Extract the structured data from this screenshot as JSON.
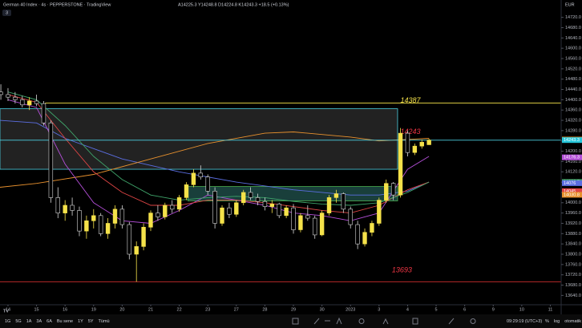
{
  "header": {
    "title": "German 40 Index · 4s · PEPPERSTONE · TradingView",
    "ohlc": "A14225.3 Y14248.8 D14224.8 K14243.3 +18.5 (+0.13%)",
    "badge": "3",
    "currency": "EUR"
  },
  "toolbar": {
    "ranges": [
      "1G",
      "5G",
      "1A",
      "3A",
      "6A",
      "Bu sene",
      "1Y",
      "5Y",
      "Tümü"
    ],
    "clock": "09:29:19 (UTC+3)",
    "options": [
      "%",
      "log",
      "otomatik"
    ]
  },
  "chart_data": {
    "type": "candlestick",
    "x": [
      -0.25,
      0,
      0.25,
      0.5,
      0.75,
      1,
      1.25,
      1.5,
      1.75,
      2,
      2.25,
      2.5,
      2.75,
      3,
      3.25,
      3.5,
      3.75,
      4,
      4.25,
      4.5,
      4.75,
      5,
      5.25,
      5.5,
      5.75,
      6,
      6.25,
      6.5,
      6.75,
      7,
      7.25,
      7.5,
      7.75,
      8,
      8.25,
      8.5,
      8.75,
      9,
      9.25,
      9.5,
      9.75,
      10,
      10.25,
      10.5,
      10.75,
      11,
      11.25,
      11.5,
      11.75,
      12,
      12.25,
      12.5,
      12.75,
      13,
      13.25,
      13.5,
      13.75,
      14,
      14.25,
      14.5,
      14.75
    ],
    "open": [
      14430,
      14420,
      14410,
      14400,
      14380,
      14395,
      14385,
      14310,
      14020,
      13960,
      13990,
      13970,
      13890,
      13930,
      13950,
      13880,
      13920,
      13975,
      13915,
      13800,
      13830,
      13905,
      13960,
      13945,
      13990,
      13975,
      14020,
      14070,
      14115,
      14100,
      14045,
      13920,
      13980,
      13955,
      14000,
      14040,
      14020,
      14005,
      13985,
      13995,
      13950,
      13980,
      13895,
      13950,
      13940,
      13875,
      13960,
      14020,
      14035,
      13975,
      13915,
      13840,
      13885,
      13920,
      14010,
      14075,
      14030,
      14270,
      14195,
      14220,
      14225.3
    ],
    "high": [
      14460,
      14445,
      14430,
      14415,
      14410,
      14420,
      14395,
      14320,
      14060,
      14010,
      14020,
      13985,
      13950,
      13975,
      13960,
      13940,
      13990,
      13990,
      13925,
      13850,
      13920,
      13970,
      13990,
      14000,
      14010,
      14030,
      14080,
      14130,
      14145,
      14110,
      14060,
      13990,
      14000,
      14010,
      14050,
      14060,
      14035,
      14020,
      14010,
      14000,
      13990,
      13995,
      13960,
      13990,
      13950,
      13970,
      14030,
      14050,
      14040,
      13985,
      13930,
      13900,
      13930,
      14020,
      14090,
      14080,
      14290,
      14280,
      14230,
      14245,
      14248.8
    ],
    "low": [
      14400,
      14395,
      14385,
      14370,
      14360,
      14375,
      14300,
      14000,
      13940,
      13930,
      13950,
      13870,
      13860,
      13900,
      13870,
      13860,
      13900,
      13900,
      13780,
      13693,
      13815,
      13890,
      13930,
      13935,
      13960,
      13965,
      14010,
      14060,
      14090,
      14030,
      13900,
      13910,
      13940,
      13945,
      13990,
      14010,
      13990,
      13970,
      13960,
      13940,
      13940,
      13880,
      13885,
      13930,
      13860,
      13870,
      13950,
      14000,
      13960,
      13900,
      13820,
      13830,
      13870,
      13910,
      14000,
      14010,
      14020,
      14180,
      14185,
      14210,
      14224.8
    ],
    "close": [
      14420,
      14410,
      14400,
      14380,
      14395,
      14385,
      14310,
      14020,
      13960,
      13990,
      13970,
      13890,
      13930,
      13950,
      13880,
      13920,
      13975,
      13915,
      13800,
      13830,
      13905,
      13960,
      13945,
      13990,
      13975,
      14020,
      14070,
      14115,
      14100,
      14045,
      13920,
      13980,
      13955,
      14000,
      14040,
      14020,
      14005,
      13985,
      13995,
      13950,
      13980,
      13895,
      13950,
      13940,
      13875,
      13960,
      14020,
      14035,
      13975,
      13915,
      13840,
      13885,
      13920,
      14010,
      14075,
      14030,
      14270,
      14195,
      14220,
      14235,
      14243.3
    ],
    "up_color": "#f5e24a",
    "down_color": "#000000",
    "down_border": "#d9d9d9",
    "overlays": [
      {
        "color": "#5b6ee1",
        "x": [
          -0.28,
          1,
          2,
          4,
          6,
          8,
          10,
          12,
          13,
          14,
          14.75
        ],
        "values": [
          14320,
          14310,
          14250,
          14170,
          14120,
          14080,
          14050,
          14030,
          14030,
          14045,
          14080
        ]
      },
      {
        "color": "#e8912e",
        "x": [
          -0.28,
          1,
          3,
          5,
          7,
          9,
          10,
          12,
          13,
          14.75
        ],
        "values": [
          14060,
          14075,
          14110,
          14170,
          14230,
          14270,
          14275,
          14255,
          14240,
          14250
        ]
      },
      {
        "color": "#b44fd8",
        "x": [
          0,
          1,
          2,
          3,
          4,
          5,
          6,
          7,
          8,
          9,
          10,
          11,
          12,
          13,
          14,
          14.75
        ],
        "values": [
          14400,
          14370,
          14150,
          14000,
          13930,
          13920,
          13970,
          14030,
          14010,
          13990,
          13960,
          13950,
          13930,
          13960,
          14130,
          14180
        ]
      },
      {
        "color": "#e04545",
        "x": [
          0,
          1,
          2,
          3,
          4,
          5,
          6,
          7,
          8,
          9,
          10,
          11,
          12,
          13,
          14,
          14.75
        ],
        "values": [
          14420,
          14390,
          14250,
          14120,
          14040,
          13990,
          13990,
          14010,
          14010,
          14000,
          13985,
          13970,
          13960,
          13990,
          14050,
          14080
        ]
      },
      {
        "color": "#3fa46a",
        "x": [
          0,
          1,
          2,
          3,
          4,
          5,
          6,
          7,
          8,
          9,
          10,
          11,
          12,
          13,
          14,
          14.75
        ],
        "values": [
          14430,
          14400,
          14300,
          14180,
          14090,
          14030,
          14010,
          14020,
          14025,
          14020,
          14005,
          13995,
          13990,
          14000,
          14040,
          14080
        ]
      }
    ],
    "zones": [
      {
        "from": 14130,
        "to": 14365,
        "x_from": -0.28,
        "x_to": 13.65,
        "fill": "#2a2a2a",
        "border": "#4dd0e1"
      },
      {
        "from": 14007,
        "to": 14063,
        "x_from": 6.3,
        "x_to": 13.65,
        "fill": "#1f4f4a",
        "border": "#4caf50"
      }
    ],
    "levels": [
      {
        "value": 14387,
        "color": "#f5e24a",
        "x_from": 1.3,
        "label_x": 13.75,
        "label_color": "#f5e24a"
      },
      {
        "value": 14243,
        "color": "#4dd0e1",
        "x_from": -0.28,
        "label_x": 13.75,
        "label_color": "#f23645"
      },
      {
        "value": 13693,
        "color": "#d32f2f",
        "x_from": -0.28,
        "label_x": 13.45,
        "label_color": "#f23645"
      }
    ],
    "price_tags": [
      {
        "value": 14245.4,
        "color": "#e8912e"
      },
      {
        "value": 14243.3,
        "color": "#26c6da"
      },
      {
        "value": 14176.3,
        "color": "#b44fd8"
      },
      {
        "value": 14080.7,
        "color": "#3fa46a"
      },
      {
        "value": 14076.0,
        "color": "#5b6ee1"
      },
      {
        "value": 14045.0,
        "color": "#e04545"
      },
      {
        "value": 14030.8,
        "color": "#e8912e"
      }
    ],
    "xlim": [
      -0.28,
      19.38
    ],
    "xticks": [
      {
        "value": 0,
        "label": "14"
      },
      {
        "value": 1,
        "label": "15"
      },
      {
        "value": 2,
        "label": "16"
      },
      {
        "value": 3,
        "label": "19"
      },
      {
        "value": 4,
        "label": "20"
      },
      {
        "value": 5,
        "label": "21"
      },
      {
        "value": 6,
        "label": "22"
      },
      {
        "value": 7,
        "label": "23"
      },
      {
        "value": 8,
        "label": "27"
      },
      {
        "value": 9,
        "label": "28"
      },
      {
        "value": 10,
        "label": "29"
      },
      {
        "value": 11,
        "label": "30"
      },
      {
        "value": 12,
        "label": "2023"
      },
      {
        "value": 13,
        "label": "3"
      },
      {
        "value": 14,
        "label": "4"
      },
      {
        "value": 15,
        "label": "5"
      },
      {
        "value": 16,
        "label": "6"
      },
      {
        "value": 17,
        "label": "9"
      },
      {
        "value": 18,
        "label": "10"
      },
      {
        "value": 19,
        "label": "11"
      }
    ],
    "ylim": [
      13610,
      14750
    ],
    "yticks": [
      {
        "value": 13640,
        "label": "13640.0"
      },
      {
        "value": 13680,
        "label": "13680.0"
      },
      {
        "value": 13720,
        "label": "13720.0"
      },
      {
        "value": 13760,
        "label": "13760.0"
      },
      {
        "value": 13800,
        "label": "13800.0"
      },
      {
        "value": 13840,
        "label": "13840.0"
      },
      {
        "value": 13880,
        "label": "13880.0"
      },
      {
        "value": 13920,
        "label": "13920.0"
      },
      {
        "value": 13960,
        "label": "13960.0"
      },
      {
        "value": 14000,
        "label": "14000.0"
      },
      {
        "value": 14040,
        "label": "14040.0"
      },
      {
        "value": 14080,
        "label": "14080.0"
      },
      {
        "value": 14120,
        "label": "14120.0"
      },
      {
        "value": 14160,
        "label": "14160.0"
      },
      {
        "value": 14200,
        "label": "14200.0"
      },
      {
        "value": 14240,
        "label": "14240.0"
      },
      {
        "value": 14280,
        "label": "14280.0"
      },
      {
        "value": 14320,
        "label": "14320.0"
      },
      {
        "value": 14360,
        "label": "14360.0"
      },
      {
        "value": 14400,
        "label": "14400.0"
      },
      {
        "value": 14440,
        "label": "14440.0"
      },
      {
        "value": 14480,
        "label": "14480.0"
      },
      {
        "value": 14520,
        "label": "14520.0"
      },
      {
        "value": 14560,
        "label": "14560.0"
      },
      {
        "value": 14600,
        "label": "14600.0"
      },
      {
        "value": 14640,
        "label": "14640.0"
      },
      {
        "value": 14680,
        "label": "14680.0"
      },
      {
        "value": 14720,
        "label": "14720.0"
      }
    ]
  }
}
